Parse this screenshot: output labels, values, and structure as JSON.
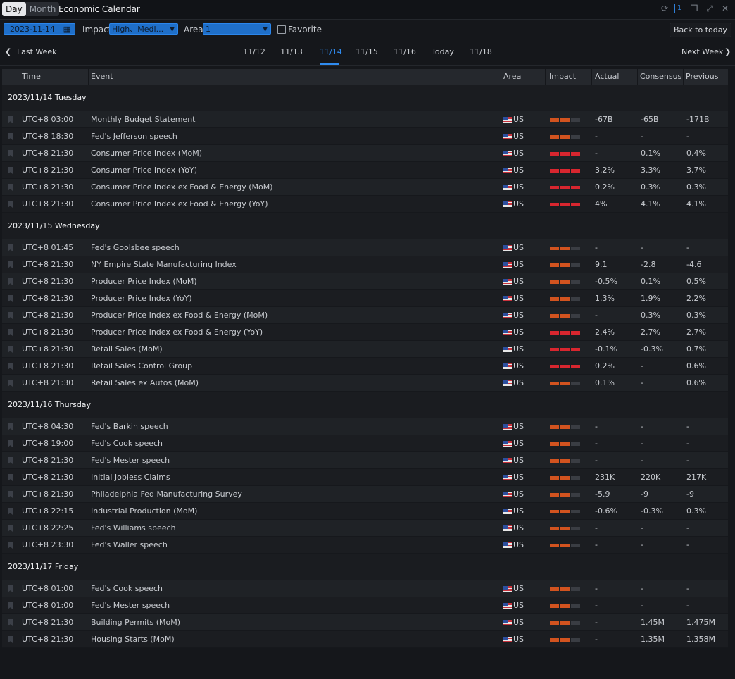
{
  "window": {
    "mode_tabs": [
      "Day",
      "Month"
    ],
    "active_mode": "Day",
    "title": "Economic Calendar"
  },
  "toolbar": {
    "date": "2023-11-14",
    "impact_label": "Impact",
    "impact_value": "High、Medi...",
    "area_label": "Area",
    "area_value": "1",
    "favorite_label": "Favorite",
    "back_label": "Back to today"
  },
  "weeknav": {
    "last_week": "Last Week",
    "next_week": "Next Week",
    "days": [
      "11/12",
      "11/13",
      "11/14",
      "11/15",
      "11/16",
      "Today",
      "11/18"
    ],
    "active_day": "11/14"
  },
  "columns": [
    "Time",
    "Event",
    "Area",
    "Impact",
    "Actual",
    "Consensus",
    "Previous"
  ],
  "groups": [
    {
      "date": "2023/11/14 Tuesday",
      "rows": [
        {
          "time": "UTC+8 03:00",
          "event": "Monthly Budget Statement",
          "area": "US",
          "impact": "medium",
          "actual": "-67B",
          "consensus": "-65B",
          "previous": "-171B"
        },
        {
          "time": "UTC+8 18:30",
          "event": "Fed's Jefferson speech",
          "area": "US",
          "impact": "medium",
          "actual": "-",
          "consensus": "-",
          "previous": "-"
        },
        {
          "time": "UTC+8 21:30",
          "event": "Consumer Price Index (MoM)",
          "area": "US",
          "impact": "high",
          "actual": "-",
          "consensus": "0.1%",
          "previous": "0.4%"
        },
        {
          "time": "UTC+8 21:30",
          "event": "Consumer Price Index (YoY)",
          "area": "US",
          "impact": "high",
          "actual": "3.2%",
          "consensus": "3.3%",
          "previous": "3.7%"
        },
        {
          "time": "UTC+8 21:30",
          "event": "Consumer Price Index ex Food & Energy (MoM)",
          "area": "US",
          "impact": "high",
          "actual": "0.2%",
          "consensus": "0.3%",
          "previous": "0.3%"
        },
        {
          "time": "UTC+8 21:30",
          "event": "Consumer Price Index ex Food & Energy (YoY)",
          "area": "US",
          "impact": "high",
          "actual": "4%",
          "consensus": "4.1%",
          "previous": "4.1%"
        }
      ]
    },
    {
      "date": "2023/11/15 Wednesday",
      "rows": [
        {
          "time": "UTC+8 01:45",
          "event": "Fed's Goolsbee speech",
          "area": "US",
          "impact": "medium",
          "actual": "-",
          "consensus": "-",
          "previous": "-"
        },
        {
          "time": "UTC+8 21:30",
          "event": "NY Empire State Manufacturing Index",
          "area": "US",
          "impact": "medium",
          "actual": "9.1",
          "consensus": "-2.8",
          "previous": "-4.6"
        },
        {
          "time": "UTC+8 21:30",
          "event": "Producer Price Index (MoM)",
          "area": "US",
          "impact": "medium",
          "actual": "-0.5%",
          "consensus": "0.1%",
          "previous": "0.5%"
        },
        {
          "time": "UTC+8 21:30",
          "event": "Producer Price Index (YoY)",
          "area": "US",
          "impact": "medium",
          "actual": "1.3%",
          "consensus": "1.9%",
          "previous": "2.2%"
        },
        {
          "time": "UTC+8 21:30",
          "event": "Producer Price Index ex Food & Energy (MoM)",
          "area": "US",
          "impact": "medium",
          "actual": "-",
          "consensus": "0.3%",
          "previous": "0.3%"
        },
        {
          "time": "UTC+8 21:30",
          "event": "Producer Price Index ex Food & Energy (YoY)",
          "area": "US",
          "impact": "high",
          "actual": "2.4%",
          "consensus": "2.7%",
          "previous": "2.7%"
        },
        {
          "time": "UTC+8 21:30",
          "event": "Retail Sales (MoM)",
          "area": "US",
          "impact": "high",
          "actual": "-0.1%",
          "consensus": "-0.3%",
          "previous": "0.7%"
        },
        {
          "time": "UTC+8 21:30",
          "event": "Retail Sales Control Group",
          "area": "US",
          "impact": "high",
          "actual": "0.2%",
          "consensus": "-",
          "previous": "0.6%"
        },
        {
          "time": "UTC+8 21:30",
          "event": "Retail Sales ex Autos (MoM)",
          "area": "US",
          "impact": "medium",
          "actual": "0.1%",
          "consensus": "-",
          "previous": "0.6%"
        }
      ]
    },
    {
      "date": "2023/11/16 Thursday",
      "rows": [
        {
          "time": "UTC+8 04:30",
          "event": "Fed's Barkin speech",
          "area": "US",
          "impact": "medium",
          "actual": "-",
          "consensus": "-",
          "previous": "-"
        },
        {
          "time": "UTC+8 19:00",
          "event": "Fed's Cook speech",
          "area": "US",
          "impact": "medium",
          "actual": "-",
          "consensus": "-",
          "previous": "-"
        },
        {
          "time": "UTC+8 21:30",
          "event": "Fed's Mester speech",
          "area": "US",
          "impact": "medium",
          "actual": "-",
          "consensus": "-",
          "previous": "-"
        },
        {
          "time": "UTC+8 21:30",
          "event": "Initial Jobless Claims",
          "area": "US",
          "impact": "medium",
          "actual": "231K",
          "consensus": "220K",
          "previous": "217K"
        },
        {
          "time": "UTC+8 21:30",
          "event": "Philadelphia Fed Manufacturing Survey",
          "area": "US",
          "impact": "medium",
          "actual": "-5.9",
          "consensus": "-9",
          "previous": "-9"
        },
        {
          "time": "UTC+8 22:15",
          "event": "Industrial Production (MoM)",
          "area": "US",
          "impact": "medium",
          "actual": "-0.6%",
          "consensus": "-0.3%",
          "previous": "0.3%"
        },
        {
          "time": "UTC+8 22:25",
          "event": "Fed's Williams speech",
          "area": "US",
          "impact": "medium",
          "actual": "-",
          "consensus": "-",
          "previous": "-"
        },
        {
          "time": "UTC+8 23:30",
          "event": "Fed's Waller speech",
          "area": "US",
          "impact": "medium",
          "actual": "-",
          "consensus": "-",
          "previous": "-"
        }
      ]
    },
    {
      "date": "2023/11/17 Friday",
      "rows": [
        {
          "time": "UTC+8 01:00",
          "event": "Fed's Cook speech",
          "area": "US",
          "impact": "medium",
          "actual": "-",
          "consensus": "-",
          "previous": "-"
        },
        {
          "time": "UTC+8 01:00",
          "event": "Fed's Mester speech",
          "area": "US",
          "impact": "medium",
          "actual": "-",
          "consensus": "-",
          "previous": "-"
        },
        {
          "time": "UTC+8 21:30",
          "event": "Building Permits (MoM)",
          "area": "US",
          "impact": "medium",
          "actual": "-",
          "consensus": "1.45M",
          "previous": "1.475M"
        },
        {
          "time": "UTC+8 21:30",
          "event": "Housing Starts (MoM)",
          "area": "US",
          "impact": "medium",
          "actual": "-",
          "consensus": "1.35M",
          "previous": "1.358M"
        }
      ]
    }
  ],
  "colors": {
    "accent": "#2f8bef",
    "impact_high": "#d8262f",
    "impact_medium": "#d2531f"
  }
}
